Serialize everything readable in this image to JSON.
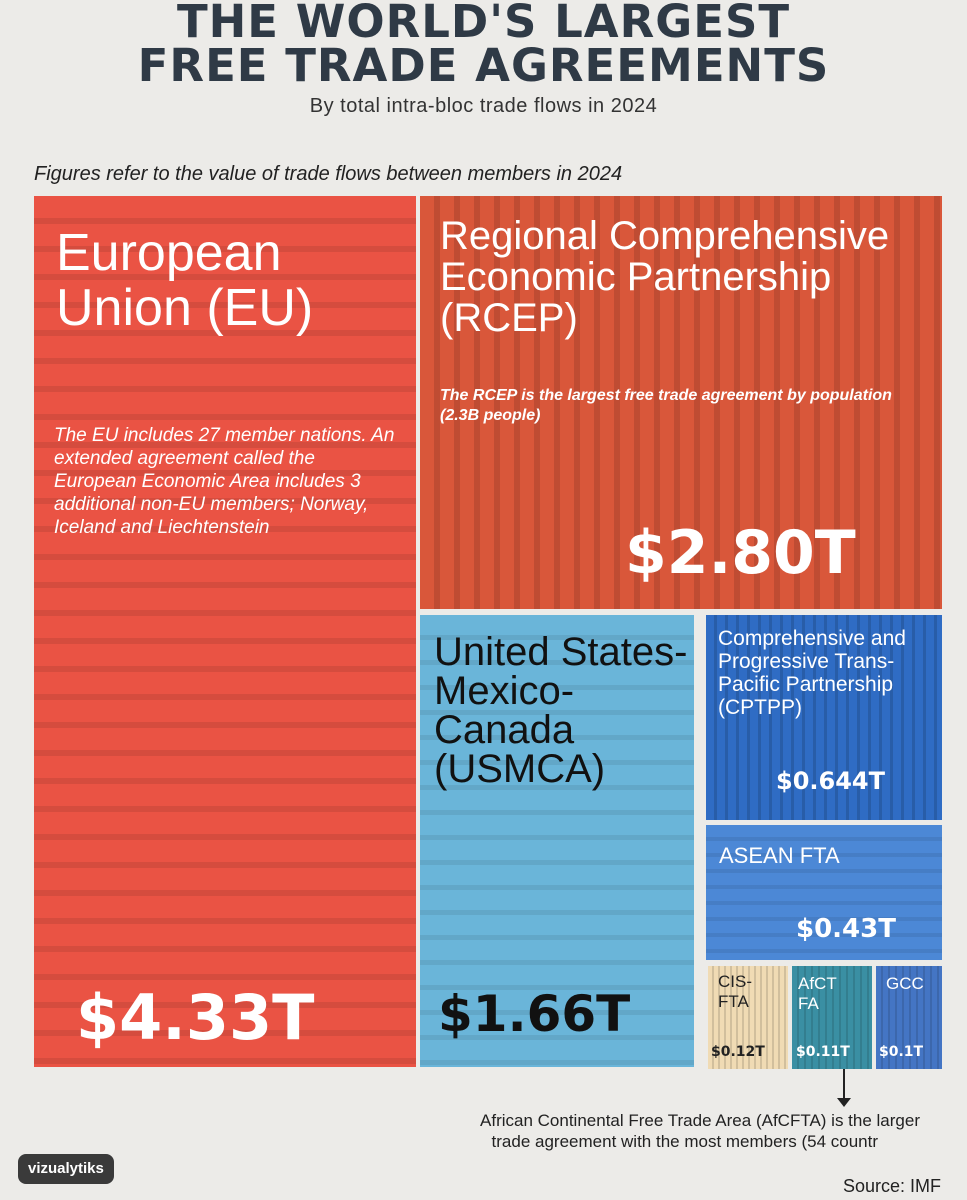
{
  "title_line1": "THE WORLD'S LARGEST",
  "title_line2": "FREE TRADE AGREEMENTS",
  "subtitle": "By total intra-bloc trade flows in 2024",
  "note": "Figures refer to the value of trade flows between members in 2024",
  "footnote_line1": "African Continental Free Trade Area (AfCFTA) is the larger",
  "footnote_line2": "trade agreement with the most members (54 countr",
  "logo": "vizualytiks",
  "source": "Source: IMF",
  "colors": {
    "eu": "#ea5344",
    "rcep": "#d9573a",
    "usmca": "#6ab5d9",
    "cptpp": "#2f6cc4",
    "asean": "#4c88d6",
    "cis": "#f0dbb4",
    "afcfta": "#3a8fa3",
    "gcc": "#4475c4"
  },
  "chart_data": {
    "type": "treemap",
    "title": "THE WORLD'S LARGEST FREE TRADE AGREEMENTS",
    "subtitle": "By total intra-bloc trade flows in 2024",
    "unit": "trillion USD",
    "items": [
      {
        "key": "eu",
        "label": "European Union (EU)",
        "value": 4.33,
        "value_label": "$4.33T",
        "description": "The EU includes 27 member nations. An extended agreement called the European Economic Area includes 3 additional non-EU members; Norway, Iceland and Liechtenstein"
      },
      {
        "key": "rcep",
        "label": "Regional Comprehensive Economic Partnership (RCEP)",
        "value": 2.8,
        "value_label": "$2.80T",
        "description": "The RCEP is the largest free trade agreement by population (2.3B people)"
      },
      {
        "key": "usmca",
        "label": "United States-Mexico-Canada (USMCA)",
        "value": 1.66,
        "value_label": "$1.66T"
      },
      {
        "key": "cptpp",
        "label": "Comprehensive and Progressive Trans-Pacific Partnership (CPTPP)",
        "value": 0.644,
        "value_label": "$0.644T"
      },
      {
        "key": "asean",
        "label": "ASEAN FTA",
        "value": 0.43,
        "value_label": "$0.43T"
      },
      {
        "key": "cis",
        "label": "CIS-FTA",
        "value": 0.12,
        "value_label": "$0.12T"
      },
      {
        "key": "afcfta",
        "label": "AfCTFA",
        "value": 0.11,
        "value_label": "$0.11T"
      },
      {
        "key": "gcc",
        "label": "GCC",
        "value": 0.1,
        "value_label": "$0.1T"
      }
    ]
  }
}
